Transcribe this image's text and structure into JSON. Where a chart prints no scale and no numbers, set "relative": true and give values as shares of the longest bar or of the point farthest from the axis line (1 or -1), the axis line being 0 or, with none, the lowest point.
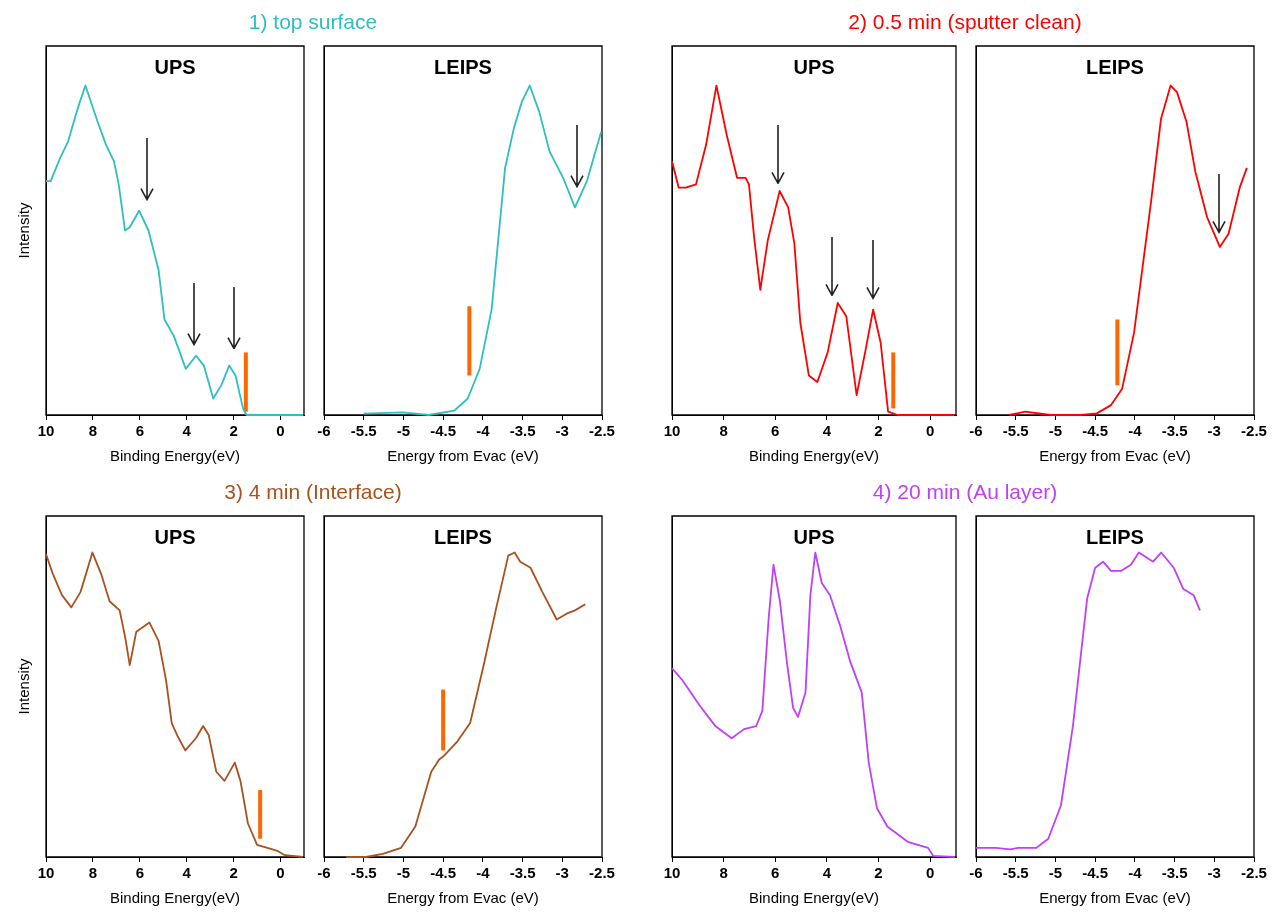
{
  "chart_data": [
    {
      "type": "line",
      "title": "1) top surface",
      "subtitle": "UPS",
      "xlabel": "Binding Energy(eV)",
      "ylabel": "Intensity",
      "relative": true,
      "xlim": [
        10,
        -1
      ],
      "xticks": [
        10,
        8,
        6,
        4,
        2,
        0
      ],
      "marker": "none",
      "series": [
        {
          "color": "#2ebfc0",
          "x": [
            10,
            9.8,
            9.4,
            9.06,
            8.65,
            8.32,
            7.8,
            7.44,
            7.1,
            6.9,
            6.63,
            6.43,
            6.03,
            5.63,
            5.2,
            4.95,
            4.55,
            4.04,
            3.6,
            3.27,
            2.87,
            2.53,
            2.19,
            1.92,
            1.6,
            1.45,
            0,
            -0.97
          ],
          "values": [
            0.71,
            0.71,
            0.78,
            0.83,
            0.93,
            1.0,
            0.89,
            0.82,
            0.77,
            0.7,
            0.56,
            0.57,
            0.62,
            0.56,
            0.44,
            0.29,
            0.24,
            0.14,
            0.18,
            0.15,
            0.05,
            0.09,
            0.15,
            0.12,
            0.02,
            0,
            0,
            0
          ]
        },
        {
          "color": "#ff6600",
          "x": [
            1.48,
            1.48
          ],
          "values": [
            0.01,
            0.19
          ]
        }
      ]
    },
    {
      "type": "line",
      "subtitle": "LEIPS",
      "xlabel": "Energy from Evac (eV)",
      "relative": true,
      "xlim": [
        -6,
        -2.5
      ],
      "xticks": [
        -6,
        -5.5,
        -5,
        -4.5,
        -4,
        -3.5,
        -3,
        -2.5
      ],
      "marker": "none",
      "series": [
        {
          "color": "#2ebfc0",
          "x": [
            -5.5,
            -5.01,
            -4.68,
            -4.36,
            -4.19,
            -4.04,
            -3.89,
            -3.72,
            -3.61,
            -3.51,
            -3.41,
            -3.29,
            -3.16,
            -2.99,
            -2.84,
            -2.69,
            -2.51
          ],
          "values": [
            0.004,
            0.008,
            0,
            0.013,
            0.05,
            0.14,
            0.32,
            0.75,
            0.87,
            0.95,
            1.0,
            0.92,
            0.8,
            0.72,
            0.63,
            0.71,
            0.86
          ]
        },
        {
          "color": "#ff6600",
          "x": [
            -4.17,
            -4.17
          ],
          "values": [
            0.12,
            0.33
          ]
        }
      ]
    },
    {
      "type": "line",
      "title": "2) 0.5 min (sputter clean)",
      "subtitle": "UPS",
      "xlabel": "Binding Energy(eV)",
      "relative": true,
      "xlim": [
        10,
        -1
      ],
      "xticks": [
        10,
        8,
        6,
        4,
        2,
        0
      ],
      "marker": "none",
      "series": [
        {
          "color": "#ff0000",
          "x": [
            10,
            9.74,
            9.47,
            9.07,
            8.68,
            8.28,
            7.88,
            7.48,
            7.15,
            7.02,
            6.82,
            6.58,
            6.29,
            5.83,
            5.5,
            5.26,
            5.03,
            4.7,
            4.37,
            3.97,
            3.58,
            3.25,
            2.85,
            2.52,
            2.21,
            1.92,
            1.63,
            1.26,
            0,
            -0.93
          ],
          "values": [
            0.77,
            0.69,
            0.69,
            0.7,
            0.82,
            1.0,
            0.85,
            0.72,
            0.72,
            0.7,
            0.54,
            0.38,
            0.53,
            0.68,
            0.63,
            0.52,
            0.28,
            0.12,
            0.1,
            0.19,
            0.34,
            0.3,
            0.06,
            0.19,
            0.32,
            0.22,
            0.01,
            0,
            0,
            0
          ]
        },
        {
          "color": "#ff6600",
          "x": [
            1.43,
            1.43
          ],
          "values": [
            0.02,
            0.19
          ]
        }
      ]
    },
    {
      "type": "line",
      "subtitle": "LEIPS",
      "xlabel": "Energy from Evac (eV)",
      "relative": true,
      "xlim": [
        -6,
        -2.5
      ],
      "xticks": [
        -6,
        -5.5,
        -5,
        -4.5,
        -4,
        -3.5,
        -3,
        -2.5
      ],
      "marker": "none",
      "series": [
        {
          "color": "#ff0000",
          "x": [
            -5.58,
            -5.38,
            -5.06,
            -4.68,
            -4.48,
            -4.3,
            -4.16,
            -4.01,
            -3.8,
            -3.67,
            -3.55,
            -3.47,
            -3.35,
            -3.24,
            -3.09,
            -2.93,
            -2.82,
            -2.68,
            -2.59
          ],
          "values": [
            0,
            0.01,
            0,
            0,
            0.005,
            0.03,
            0.08,
            0.25,
            0.64,
            0.9,
            1.0,
            0.98,
            0.89,
            0.74,
            0.6,
            0.51,
            0.55,
            0.69,
            0.75
          ]
        },
        {
          "color": "#ff6600",
          "x": [
            -4.22,
            -4.22
          ],
          "values": [
            0.09,
            0.29
          ]
        }
      ]
    },
    {
      "type": "line",
      "title": "3) 4 min (Interface)",
      "subtitle": "UPS",
      "xlabel": "Binding Energy(eV)",
      "ylabel": "Intensity",
      "relative": true,
      "xlim": [
        10,
        -1
      ],
      "xticks": [
        10,
        8,
        6,
        4,
        2,
        0
      ],
      "marker": "none",
      "series": [
        {
          "color": "#a8521e",
          "x": [
            10,
            9.71,
            9.32,
            8.92,
            8.53,
            8.02,
            7.65,
            7.29,
            6.86,
            6.62,
            6.43,
            6.15,
            5.59,
            5.2,
            4.88,
            4.64,
            4.41,
            4.06,
            3.61,
            3.3,
            3.06,
            2.74,
            2.39,
            1.95,
            1.71,
            1.39,
            1.0,
            0.13,
            -0.19,
            -0.95
          ],
          "values": [
            0.995,
            0.93,
            0.86,
            0.82,
            0.87,
            1.0,
            0.93,
            0.84,
            0.81,
            0.72,
            0.63,
            0.74,
            0.77,
            0.71,
            0.58,
            0.44,
            0.4,
            0.35,
            0.39,
            0.43,
            0.4,
            0.28,
            0.25,
            0.31,
            0.25,
            0.11,
            0.04,
            0.02,
            0.006,
            0
          ]
        },
        {
          "color": "#ff6600",
          "x": [
            0.87,
            0.87
          ],
          "values": [
            0.06,
            0.22
          ]
        }
      ]
    },
    {
      "type": "line",
      "subtitle": "LEIPS",
      "xlabel": "Energy from Evac (eV)",
      "relative": true,
      "xlim": [
        -6,
        -2.5
      ],
      "xticks": [
        -6,
        -5.5,
        -5,
        -4.5,
        -4,
        -3.5,
        -3,
        -2.5
      ],
      "marker": "none",
      "series": [
        {
          "color": "#a8521e",
          "x": [
            -5.72,
            -5.47,
            -5.26,
            -5.03,
            -4.85,
            -4.65,
            -4.55,
            -4.5,
            -4.32,
            -4.16,
            -3.99,
            -3.83,
            -3.68,
            -3.6,
            -3.53,
            -3.4,
            -3.25,
            -3.07,
            -2.94,
            -2.84,
            -2.71
          ],
          "values": [
            0,
            0,
            0.01,
            0.03,
            0.1,
            0.28,
            0.32,
            0.33,
            0.38,
            0.44,
            0.63,
            0.82,
            0.99,
            1.0,
            0.97,
            0.95,
            0.87,
            0.78,
            0.8,
            0.81,
            0.83
          ]
        },
        {
          "color": "#ff6600",
          "x": [
            -4.5,
            -4.5
          ],
          "values": [
            0.35,
            0.55
          ]
        }
      ]
    },
    {
      "type": "line",
      "title": "4) 20 min (Au layer)",
      "subtitle": "UPS",
      "xlabel": "Binding Energy(eV)",
      "relative": true,
      "xlim": [
        10,
        -1
      ],
      "xticks": [
        10,
        8,
        6,
        4,
        2,
        0
      ],
      "marker": "none",
      "series": [
        {
          "color": "#c040f8",
          "x": [
            10,
            9.59,
            8.95,
            8.32,
            7.69,
            7.21,
            6.74,
            6.5,
            6.26,
            6.07,
            5.82,
            5.55,
            5.31,
            5.12,
            4.83,
            4.64,
            4.45,
            4.2,
            3.88,
            3.49,
            3.09,
            2.65,
            2.38,
            2.06,
            1.66,
            0.87,
            0.08,
            -0.11,
            -0.95
          ],
          "values": [
            0.62,
            0.58,
            0.5,
            0.43,
            0.39,
            0.42,
            0.43,
            0.48,
            0.78,
            0.96,
            0.84,
            0.64,
            0.49,
            0.46,
            0.54,
            0.86,
            1.0,
            0.9,
            0.86,
            0.76,
            0.64,
            0.54,
            0.31,
            0.16,
            0.1,
            0.05,
            0.03,
            0.004,
            0
          ]
        }
      ]
    },
    {
      "type": "line",
      "subtitle": "LEIPS",
      "xlabel": "Energy from Evac (eV)",
      "relative": true,
      "xlim": [
        -6,
        -2.5
      ],
      "xticks": [
        -6,
        -5.5,
        -5,
        -4.5,
        -4,
        -3.5,
        -3,
        -2.5
      ],
      "marker": "none",
      "series": [
        {
          "color": "#c040f8",
          "x": [
            -6,
            -5.75,
            -5.57,
            -5.47,
            -5.24,
            -5.09,
            -4.93,
            -4.78,
            -4.6,
            -4.5,
            -4.4,
            -4.3,
            -4.17,
            -4.05,
            -3.95,
            -3.77,
            -3.67,
            -3.51,
            -3.39,
            -3.26,
            -3.18
          ],
          "values": [
            0.03,
            0.03,
            0.025,
            0.03,
            0.03,
            0.06,
            0.17,
            0.43,
            0.85,
            0.95,
            0.97,
            0.94,
            0.94,
            0.96,
            1.0,
            0.97,
            1.0,
            0.95,
            0.88,
            0.86,
            0.81
          ]
        }
      ]
    }
  ]
}
